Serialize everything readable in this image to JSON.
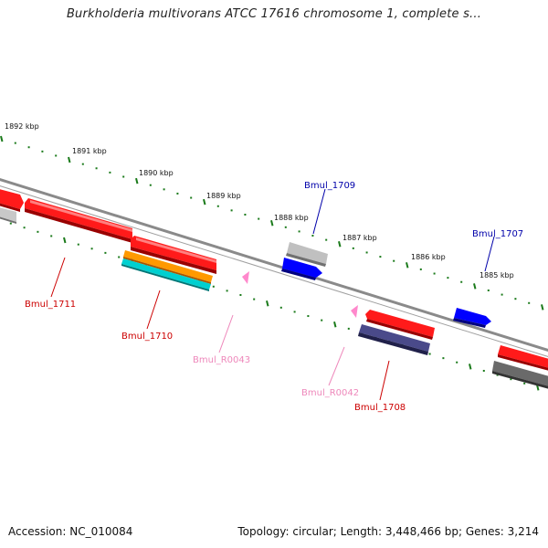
{
  "title": "Burkholderia multivorans ATCC 17616 chromosome 1, complete s...",
  "footer": {
    "accession": "Accession: NC_010084",
    "topology": "Topology: circular; Length: 3,448,466 bp; Genes: 3,214"
  },
  "colors": {
    "backbone": "#808080",
    "tick": "#1a7a1a",
    "forward_gene": "#ff0000",
    "reverse_gene": "#0000ff",
    "grey_gene": "#bdbdbd",
    "dark_grey_gene": "#666666",
    "orange_gene": "#ff9900",
    "cyan_gene": "#00cccc",
    "navy_gene": "#404080",
    "rna_pink": "#ff88cc"
  },
  "kbp_labels": [
    "1892 kbp",
    "1891 kbp",
    "1890 kbp",
    "1889 kbp",
    "1888 kbp",
    "1887 kbp",
    "1886 kbp",
    "1885 kbp"
  ],
  "gene_labels": [
    {
      "text": "Bmul_1709",
      "color": "#0000aa"
    },
    {
      "text": "Bmul_1707",
      "color": "#0000aa"
    },
    {
      "text": "Bmul_1711",
      "color": "#cc0000"
    },
    {
      "text": "Bmul_1710",
      "color": "#cc0000"
    },
    {
      "text": "Bmul_R0043",
      "color": "#ee88bb"
    },
    {
      "text": "Bmul_R0042",
      "color": "#ee88bb"
    },
    {
      "text": "Bmul_1708",
      "color": "#cc0000"
    }
  ]
}
